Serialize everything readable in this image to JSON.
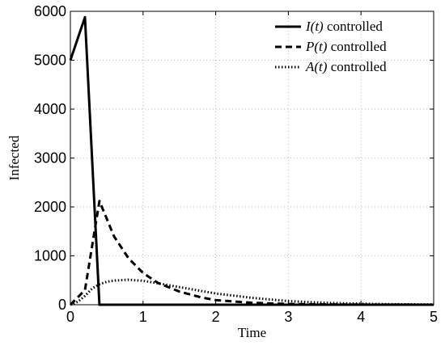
{
  "chart_data": {
    "type": "line",
    "xlabel": "Time",
    "ylabel": "Infected",
    "xlim": [
      0,
      5
    ],
    "ylim": [
      0,
      6000
    ],
    "xticks": [
      0,
      1,
      2,
      3,
      4,
      5
    ],
    "yticks": [
      0,
      1000,
      2000,
      3000,
      4000,
      5000,
      6000
    ],
    "grid": true,
    "legend_position": "top-right",
    "series": [
      {
        "name": "I(t) controlled",
        "math": "I(t)",
        "suffix": " controlled",
        "style": "solid",
        "color": "#000000",
        "x": [
          0,
          0.2,
          0.4,
          5
        ],
        "y": [
          5000,
          5880,
          0,
          0
        ]
      },
      {
        "name": "P(t) controlled",
        "math": "P(t)",
        "suffix": " controlled",
        "style": "dashed",
        "color": "#000000",
        "x": [
          0,
          0.2,
          0.4,
          0.6,
          0.8,
          1.0,
          1.2,
          1.5,
          1.8,
          2.0,
          2.5,
          3.0,
          3.5,
          4.0,
          5.0
        ],
        "y": [
          0,
          300,
          2120,
          1400,
          950,
          650,
          450,
          270,
          150,
          95,
          40,
          15,
          6,
          3,
          0
        ]
      },
      {
        "name": "A(t) controlled",
        "math": "A(t)",
        "suffix": " controlled",
        "style": "dotted",
        "color": "#000000",
        "x": [
          0,
          0.1,
          0.2,
          0.3,
          0.4,
          0.5,
          0.6,
          0.8,
          1.0,
          1.2,
          1.5,
          2.0,
          2.5,
          3.0,
          3.5,
          4.0,
          4.5,
          5.0
        ],
        "y": [
          0,
          60,
          180,
          330,
          420,
          470,
          495,
          510,
          490,
          440,
          360,
          230,
          140,
          75,
          40,
          20,
          10,
          5
        ]
      }
    ]
  }
}
